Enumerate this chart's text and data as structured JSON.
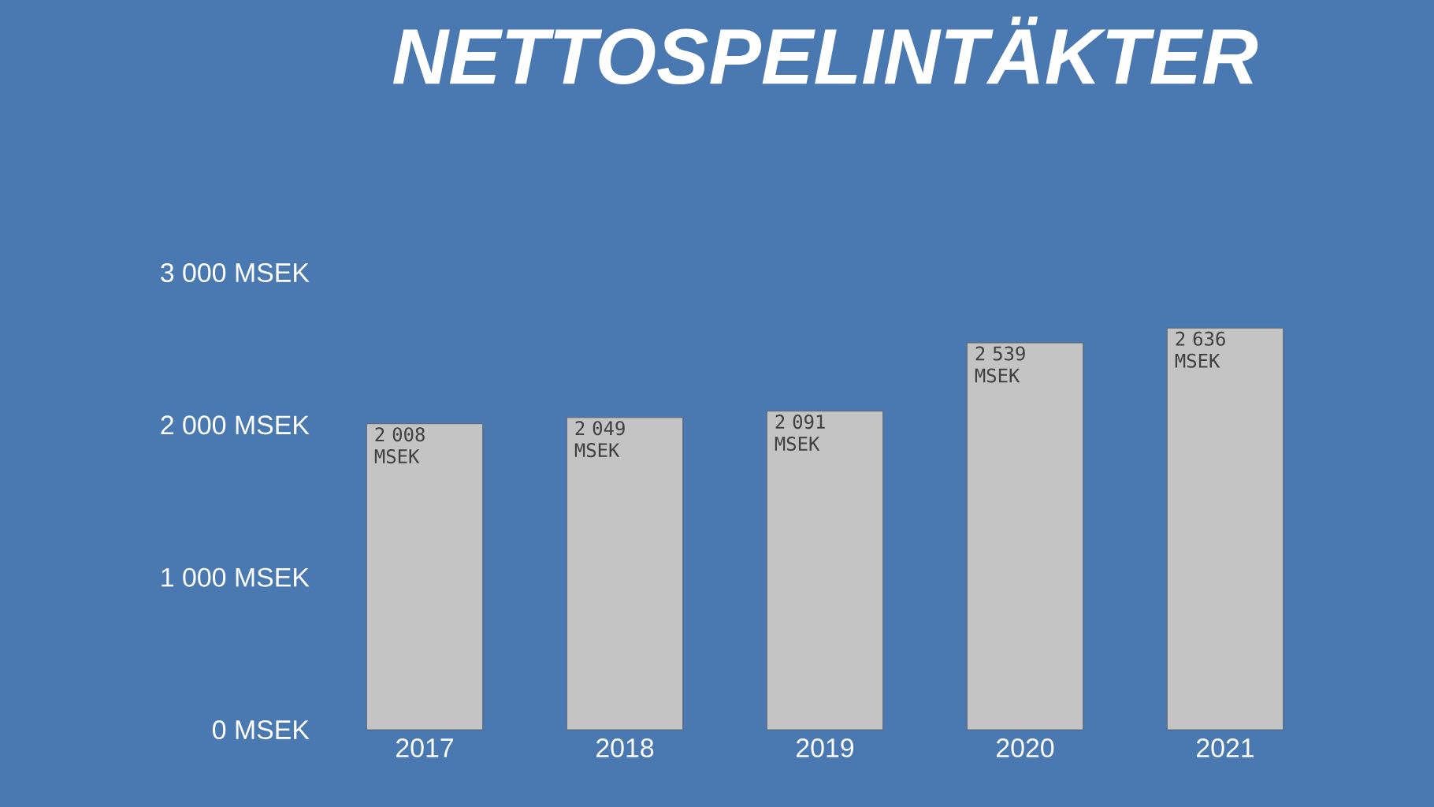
{
  "chart_data": {
    "type": "bar",
    "title": "NETTOSPELINTÄKTER",
    "categories": [
      "2017",
      "2018",
      "2019",
      "2020",
      "2021"
    ],
    "values": [
      2008,
      2049,
      2091,
      2539,
      2636
    ],
    "value_labels": [
      "2 008 MSEK",
      "2 049 MSEK",
      "2 091 MSEK",
      "2 539 MSEK",
      "2 636 MSEK"
    ],
    "color": "#c4c4c4",
    "ylim": [
      0,
      3000
    ],
    "yticks": [
      {
        "value": 0,
        "label": "0 MSEK"
      },
      {
        "value": 1000,
        "label": "1 000 MSEK"
      },
      {
        "value": 2000,
        "label": "2 000 MSEK"
      },
      {
        "value": 3000,
        "label": "3 000 MSEK"
      }
    ]
  }
}
